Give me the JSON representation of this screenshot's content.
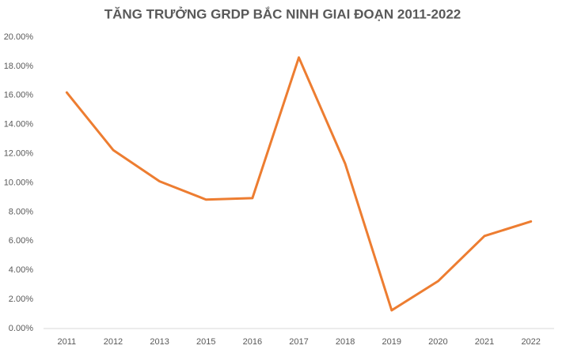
{
  "chart_data": {
    "type": "line",
    "title": "TĂNG TRƯỞNG GRDP BẮC NINH GIAI ĐOẠN 2011-2022",
    "categories": [
      "2011",
      "2012",
      "2013",
      "2015",
      "2016",
      "2017",
      "2018",
      "2019",
      "2020",
      "2021",
      "2022"
    ],
    "series": [
      {
        "name": "GRDP",
        "color": "#ed7d31",
        "values": [
          16.2,
          12.25,
          10.1,
          8.85,
          8.95,
          18.6,
          11.3,
          1.25,
          3.25,
          6.35,
          7.35
        ]
      }
    ],
    "ylim": [
      0,
      20
    ],
    "yticks": [
      {
        "value": 0,
        "label": "0.00%"
      },
      {
        "value": 2,
        "label": "2.00%"
      },
      {
        "value": 4,
        "label": "4.00%"
      },
      {
        "value": 6,
        "label": "6.00%"
      },
      {
        "value": 8,
        "label": "8.00%"
      },
      {
        "value": 10,
        "label": "10.00%"
      },
      {
        "value": 12,
        "label": "12.00%"
      },
      {
        "value": 14,
        "label": "14.00%"
      },
      {
        "value": 16,
        "label": "16.00%"
      },
      {
        "value": 18,
        "label": "18.00%"
      },
      {
        "value": 20,
        "label": "20.00%"
      }
    ],
    "grid": false
  }
}
